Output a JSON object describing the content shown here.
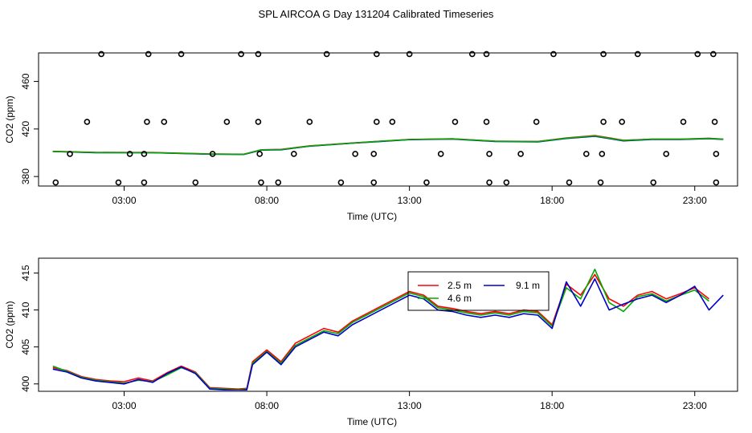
{
  "title": "SPL AIRCOA G  Day 131204  Calibrated Timeseries",
  "chart_data": [
    {
      "type": "line",
      "panel": "top",
      "xlabel": "Time (UTC)",
      "ylabel": "CO2 (ppm)",
      "xlim": [
        0,
        24.5
      ],
      "ylim": [
        372,
        484
      ],
      "xticks": [
        3,
        8,
        13,
        18,
        23
      ],
      "xtick_labels": [
        "03:00",
        "08:00",
        "13:00",
        "18:00",
        "23:00"
      ],
      "yticks": [
        380,
        420,
        460
      ],
      "ytick_labels": [
        "380",
        "420",
        "460"
      ],
      "series": [
        {
          "name": "2.5 m",
          "color": "#ff0000",
          "x": [
            0.5,
            2.0,
            4.0,
            6.0,
            7.2,
            7.8,
            8.5,
            9.5,
            11.0,
            12.0,
            13.0,
            14.5,
            16.0,
            17.5,
            18.5,
            19.5,
            20.5,
            21.5,
            22.5,
            23.5,
            24.0
          ],
          "values": [
            401.2,
            400.3,
            400.2,
            399.0,
            398.8,
            402.5,
            402.8,
            405.8,
            408.2,
            409.8,
            411.2,
            411.8,
            409.8,
            409.5,
            412.5,
            414.5,
            410.5,
            411.5,
            411.5,
            412.2,
            411.5
          ]
        },
        {
          "name": "9.1 m",
          "color": "#0000cc",
          "x": [
            0.5,
            2.0,
            4.0,
            6.0,
            7.2,
            7.8,
            8.5,
            9.5,
            11.0,
            12.0,
            13.0,
            14.5,
            16.0,
            17.5,
            18.5,
            19.5,
            20.5,
            21.5,
            22.5,
            23.5,
            24.0
          ],
          "values": [
            401.0,
            400.0,
            400.0,
            398.8,
            398.6,
            402.2,
            402.5,
            405.5,
            408.0,
            409.5,
            411.0,
            411.5,
            409.5,
            409.2,
            412.0,
            413.8,
            410.0,
            411.2,
            411.2,
            411.8,
            411.3
          ]
        },
        {
          "name": "4.6 m",
          "color": "#00aa00",
          "x": [
            0.5,
            2.0,
            4.0,
            6.0,
            7.2,
            7.8,
            8.5,
            9.5,
            11.0,
            12.0,
            13.0,
            14.5,
            16.0,
            17.5,
            18.5,
            19.5,
            20.5,
            21.5,
            22.5,
            23.5,
            24.0
          ],
          "values": [
            401.1,
            400.2,
            400.1,
            398.9,
            398.7,
            402.4,
            402.7,
            405.7,
            408.1,
            409.7,
            411.1,
            411.7,
            409.7,
            409.4,
            412.3,
            414.2,
            410.3,
            411.4,
            411.4,
            412.0,
            411.4
          ]
        }
      ],
      "calibration_points": [
        {
          "x": 2.2,
          "y": 483
        },
        {
          "x": 3.85,
          "y": 483
        },
        {
          "x": 5.0,
          "y": 483
        },
        {
          "x": 7.1,
          "y": 483
        },
        {
          "x": 7.7,
          "y": 483
        },
        {
          "x": 10.1,
          "y": 483
        },
        {
          "x": 11.85,
          "y": 483
        },
        {
          "x": 13.0,
          "y": 483
        },
        {
          "x": 15.2,
          "y": 483
        },
        {
          "x": 15.7,
          "y": 483
        },
        {
          "x": 18.05,
          "y": 483
        },
        {
          "x": 19.8,
          "y": 483
        },
        {
          "x": 21.0,
          "y": 483
        },
        {
          "x": 23.1,
          "y": 483
        },
        {
          "x": 23.65,
          "y": 483
        },
        {
          "x": 1.7,
          "y": 426
        },
        {
          "x": 3.8,
          "y": 426
        },
        {
          "x": 4.4,
          "y": 426
        },
        {
          "x": 6.6,
          "y": 426
        },
        {
          "x": 7.7,
          "y": 426
        },
        {
          "x": 9.5,
          "y": 426
        },
        {
          "x": 11.85,
          "y": 426
        },
        {
          "x": 12.4,
          "y": 426
        },
        {
          "x": 14.6,
          "y": 426
        },
        {
          "x": 15.7,
          "y": 426
        },
        {
          "x": 17.45,
          "y": 426
        },
        {
          "x": 19.8,
          "y": 426
        },
        {
          "x": 20.45,
          "y": 426
        },
        {
          "x": 22.6,
          "y": 426
        },
        {
          "x": 23.7,
          "y": 426
        },
        {
          "x": 1.1,
          "y": 399
        },
        {
          "x": 3.2,
          "y": 399
        },
        {
          "x": 3.7,
          "y": 399
        },
        {
          "x": 6.1,
          "y": 399
        },
        {
          "x": 7.75,
          "y": 399
        },
        {
          "x": 8.95,
          "y": 399
        },
        {
          "x": 11.1,
          "y": 399
        },
        {
          "x": 11.75,
          "y": 399
        },
        {
          "x": 14.1,
          "y": 399
        },
        {
          "x": 15.8,
          "y": 399
        },
        {
          "x": 16.9,
          "y": 399
        },
        {
          "x": 19.2,
          "y": 399
        },
        {
          "x": 19.75,
          "y": 399
        },
        {
          "x": 22.0,
          "y": 399
        },
        {
          "x": 23.75,
          "y": 399
        },
        {
          "x": 0.6,
          "y": 375
        },
        {
          "x": 2.8,
          "y": 375
        },
        {
          "x": 3.7,
          "y": 375
        },
        {
          "x": 5.5,
          "y": 375
        },
        {
          "x": 7.8,
          "y": 375
        },
        {
          "x": 8.4,
          "y": 375
        },
        {
          "x": 10.6,
          "y": 375
        },
        {
          "x": 11.75,
          "y": 375
        },
        {
          "x": 13.6,
          "y": 375
        },
        {
          "x": 15.8,
          "y": 375
        },
        {
          "x": 16.4,
          "y": 375
        },
        {
          "x": 18.6,
          "y": 375
        },
        {
          "x": 19.7,
          "y": 375
        },
        {
          "x": 21.55,
          "y": 375
        },
        {
          "x": 23.75,
          "y": 375
        }
      ]
    },
    {
      "type": "line",
      "panel": "bottom",
      "xlabel": "Time (UTC)",
      "ylabel": "CO2 (ppm)",
      "xlim": [
        0,
        24.5
      ],
      "ylim": [
        399,
        417
      ],
      "xticks": [
        3,
        8,
        13,
        18,
        23
      ],
      "xtick_labels": [
        "03:00",
        "08:00",
        "13:00",
        "18:00",
        "23:00"
      ],
      "yticks": [
        400,
        405,
        410,
        415
      ],
      "ytick_labels": [
        "400",
        "405",
        "410",
        "415"
      ],
      "legend": {
        "position": "top-center",
        "entries": [
          "2.5 m",
          "9.1 m",
          "4.6 m"
        ]
      },
      "series": [
        {
          "name": "2.5 m",
          "color": "#ff0000",
          "x": [
            0.5,
            1.0,
            1.5,
            2.0,
            2.5,
            3.0,
            3.5,
            4.0,
            4.5,
            5.0,
            5.5,
            6.0,
            6.5,
            7.0,
            7.3,
            7.5,
            8.0,
            8.5,
            9.0,
            9.5,
            10.0,
            10.5,
            11.0,
            11.5,
            12.0,
            12.5,
            13.0,
            13.5,
            14.0,
            14.5,
            15.0,
            15.5,
            16.0,
            16.5,
            17.0,
            17.5,
            18.0,
            18.5,
            19.0,
            19.5,
            20.0,
            20.5,
            21.0,
            21.5,
            22.0,
            22.5,
            23.0,
            23.5
          ],
          "values": [
            402.2,
            401.8,
            401.0,
            400.6,
            400.4,
            400.3,
            400.8,
            400.4,
            401.5,
            402.4,
            401.6,
            399.5,
            399.4,
            399.3,
            399.4,
            403.0,
            404.6,
            403.0,
            405.5,
            406.5,
            407.5,
            407.0,
            408.5,
            409.5,
            410.5,
            411.5,
            412.5,
            412.0,
            410.5,
            410.2,
            409.8,
            409.5,
            409.8,
            409.5,
            410.0,
            409.8,
            408.0,
            413.5,
            412.0,
            414.8,
            411.5,
            410.5,
            412.0,
            412.5,
            411.5,
            412.2,
            413.0,
            411.5
          ]
        },
        {
          "name": "4.6 m",
          "color": "#00aa00",
          "x": [
            0.5,
            1.0,
            1.5,
            2.0,
            2.5,
            3.0,
            3.5,
            4.0,
            4.5,
            5.0,
            5.5,
            6.0,
            6.5,
            7.0,
            7.3,
            7.5,
            8.0,
            8.5,
            9.0,
            9.5,
            10.0,
            10.5,
            11.0,
            11.5,
            12.0,
            12.5,
            13.0,
            13.5,
            14.0,
            14.5,
            15.0,
            15.5,
            16.0,
            16.5,
            17.0,
            17.5,
            18.0,
            18.5,
            19.0,
            19.5,
            20.0,
            20.5,
            21.0,
            21.5,
            22.0,
            22.5,
            23.0,
            23.5
          ],
          "values": [
            402.4,
            401.7,
            400.9,
            400.5,
            400.3,
            400.1,
            400.5,
            400.3,
            401.2,
            402.2,
            401.5,
            399.4,
            399.3,
            399.2,
            399.3,
            402.8,
            404.4,
            402.8,
            405.2,
            406.2,
            407.2,
            406.8,
            408.3,
            409.3,
            410.3,
            411.3,
            412.3,
            411.8,
            410.3,
            410.0,
            409.6,
            409.3,
            409.6,
            409.3,
            409.8,
            409.6,
            407.8,
            413.0,
            411.5,
            415.5,
            411.0,
            409.8,
            411.8,
            412.2,
            411.2,
            412.0,
            412.7,
            411.2
          ]
        },
        {
          "name": "9.1 m",
          "color": "#0000cc",
          "x": [
            0.5,
            1.0,
            1.5,
            2.0,
            2.5,
            3.0,
            3.5,
            4.0,
            4.5,
            5.0,
            5.5,
            6.0,
            6.5,
            7.0,
            7.3,
            7.5,
            8.0,
            8.5,
            9.0,
            9.5,
            10.0,
            10.5,
            11.0,
            11.5,
            12.0,
            12.5,
            13.0,
            13.5,
            14.0,
            14.5,
            15.0,
            15.5,
            16.0,
            16.5,
            17.0,
            17.5,
            18.0,
            18.5,
            19.0,
            19.5,
            20.0,
            20.5,
            21.0,
            21.5,
            22.0,
            22.5,
            23.0,
            23.5,
            24.0
          ],
          "values": [
            402.0,
            401.6,
            400.8,
            400.4,
            400.2,
            400.0,
            400.6,
            400.2,
            401.4,
            402.3,
            401.4,
            399.3,
            399.2,
            399.1,
            399.2,
            402.6,
            404.3,
            402.6,
            405.0,
            406.0,
            407.0,
            406.5,
            408.0,
            409.0,
            410.0,
            411.0,
            412.0,
            411.5,
            410.0,
            409.8,
            409.3,
            409.0,
            409.3,
            409.0,
            409.5,
            409.3,
            407.5,
            413.8,
            410.5,
            414.2,
            410.0,
            410.8,
            411.5,
            412.0,
            411.0,
            412.0,
            413.2,
            410.0,
            412.0
          ]
        }
      ]
    }
  ]
}
